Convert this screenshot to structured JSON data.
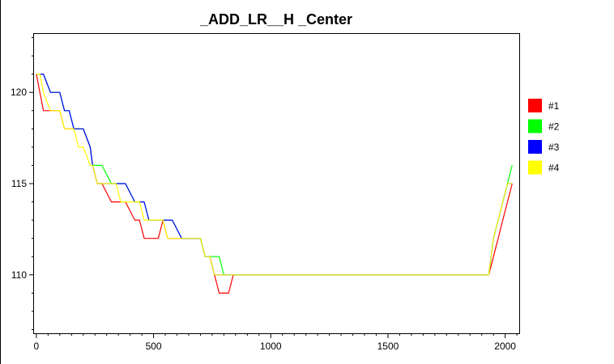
{
  "chart_data": {
    "type": "line",
    "title": "_ADD_LR__H _Center",
    "xlabel": "",
    "ylabel": "",
    "xlim": [
      -10,
      2060
    ],
    "ylim": [
      106.8,
      123.2
    ],
    "xticks": [
      0,
      500,
      1000,
      1500,
      2000
    ],
    "yticks": [
      110,
      115,
      120
    ],
    "x_minor_step": 50,
    "y_minor_step": 1,
    "grid": false,
    "legend_position": "right",
    "series": [
      {
        "name": "#1",
        "color": "#ff0000",
        "points": [
          [
            0,
            121
          ],
          [
            15,
            120
          ],
          [
            30,
            119
          ],
          [
            60,
            119
          ],
          [
            80,
            119
          ],
          [
            100,
            119
          ],
          [
            120,
            118
          ],
          [
            140,
            118
          ],
          [
            160,
            118
          ],
          [
            180,
            118
          ],
          [
            200,
            118
          ],
          [
            230,
            117
          ],
          [
            240,
            116
          ],
          [
            260,
            115
          ],
          [
            280,
            115
          ],
          [
            320,
            114
          ],
          [
            340,
            114
          ],
          [
            360,
            114
          ],
          [
            380,
            114
          ],
          [
            420,
            113
          ],
          [
            440,
            113
          ],
          [
            460,
            112
          ],
          [
            480,
            112
          ],
          [
            500,
            112
          ],
          [
            520,
            112
          ],
          [
            540,
            113
          ],
          [
            560,
            112
          ],
          [
            580,
            112
          ],
          [
            620,
            112
          ],
          [
            650,
            112
          ],
          [
            680,
            112
          ],
          [
            700,
            112
          ],
          [
            720,
            111
          ],
          [
            740,
            111
          ],
          [
            760,
            110
          ],
          [
            780,
            109
          ],
          [
            800,
            109
          ],
          [
            820,
            109
          ],
          [
            840,
            110
          ],
          [
            880,
            110
          ],
          [
            900,
            110
          ],
          [
            960,
            110
          ],
          [
            1000,
            110
          ],
          [
            1050,
            110
          ],
          [
            1100,
            110
          ],
          [
            1200,
            110
          ],
          [
            1300,
            110
          ],
          [
            1400,
            110
          ],
          [
            1500,
            110
          ],
          [
            1600,
            110
          ],
          [
            1700,
            110
          ],
          [
            1800,
            110
          ],
          [
            1900,
            110
          ],
          [
            1930,
            110
          ],
          [
            1950,
            111
          ],
          [
            1970,
            112
          ],
          [
            1990,
            113
          ],
          [
            2010,
            114
          ],
          [
            2030,
            115
          ]
        ]
      },
      {
        "name": "#2",
        "color": "#00ff00",
        "points": [
          [
            0,
            121
          ],
          [
            15,
            121
          ],
          [
            30,
            121
          ],
          [
            60,
            120
          ],
          [
            80,
            120
          ],
          [
            100,
            120
          ],
          [
            120,
            119
          ],
          [
            140,
            119
          ],
          [
            160,
            118
          ],
          [
            180,
            118
          ],
          [
            200,
            118
          ],
          [
            230,
            117
          ],
          [
            240,
            116
          ],
          [
            260,
            116
          ],
          [
            280,
            116
          ],
          [
            320,
            115
          ],
          [
            340,
            115
          ],
          [
            360,
            115
          ],
          [
            380,
            115
          ],
          [
            420,
            114
          ],
          [
            440,
            114
          ],
          [
            460,
            114
          ],
          [
            480,
            113
          ],
          [
            500,
            113
          ],
          [
            520,
            113
          ],
          [
            540,
            113
          ],
          [
            560,
            113
          ],
          [
            580,
            113
          ],
          [
            620,
            112
          ],
          [
            650,
            112
          ],
          [
            680,
            112
          ],
          [
            700,
            112
          ],
          [
            720,
            111
          ],
          [
            740,
            111
          ],
          [
            760,
            111
          ],
          [
            780,
            111
          ],
          [
            800,
            110
          ],
          [
            820,
            110
          ],
          [
            840,
            110
          ],
          [
            880,
            110
          ],
          [
            900,
            110
          ],
          [
            960,
            110
          ],
          [
            1000,
            110
          ],
          [
            1050,
            110
          ],
          [
            1100,
            110
          ],
          [
            1200,
            110
          ],
          [
            1300,
            110
          ],
          [
            1400,
            110
          ],
          [
            1500,
            110
          ],
          [
            1600,
            110
          ],
          [
            1700,
            110
          ],
          [
            1800,
            110
          ],
          [
            1900,
            110
          ],
          [
            1930,
            110
          ],
          [
            1950,
            112
          ],
          [
            1970,
            113
          ],
          [
            1990,
            114
          ],
          [
            2010,
            115
          ],
          [
            2030,
            116
          ]
        ]
      },
      {
        "name": "#3",
        "color": "#0000ff",
        "points": [
          [
            0,
            121
          ],
          [
            15,
            121
          ],
          [
            30,
            121
          ],
          [
            60,
            120
          ],
          [
            80,
            120
          ],
          [
            100,
            120
          ],
          [
            120,
            119
          ],
          [
            140,
            119
          ],
          [
            160,
            118
          ],
          [
            180,
            118
          ],
          [
            200,
            118
          ],
          [
            230,
            117
          ],
          [
            240,
            116
          ],
          [
            260,
            115
          ],
          [
            280,
            115
          ],
          [
            320,
            115
          ],
          [
            340,
            115
          ],
          [
            360,
            115
          ],
          [
            380,
            115
          ],
          [
            420,
            114
          ],
          [
            440,
            114
          ],
          [
            460,
            114
          ],
          [
            480,
            113
          ],
          [
            500,
            113
          ],
          [
            520,
            113
          ],
          [
            540,
            113
          ],
          [
            560,
            113
          ],
          [
            580,
            113
          ],
          [
            620,
            112
          ],
          [
            650,
            112
          ],
          [
            680,
            112
          ],
          [
            700,
            112
          ],
          [
            720,
            111
          ],
          [
            740,
            111
          ],
          [
            760,
            110
          ],
          [
            780,
            110
          ],
          [
            800,
            110
          ],
          [
            820,
            110
          ],
          [
            840,
            110
          ],
          [
            880,
            110
          ],
          [
            900,
            110
          ],
          [
            960,
            110
          ],
          [
            1000,
            110
          ],
          [
            1050,
            110
          ],
          [
            1100,
            110
          ],
          [
            1200,
            110
          ],
          [
            1300,
            110
          ],
          [
            1400,
            110
          ],
          [
            1500,
            110
          ],
          [
            1600,
            110
          ],
          [
            1700,
            110
          ],
          [
            1800,
            110
          ],
          [
            1900,
            110
          ],
          [
            1930,
            110
          ],
          [
            1950,
            112
          ],
          [
            1970,
            113
          ],
          [
            1990,
            114
          ],
          [
            2010,
            115
          ],
          [
            2030,
            115
          ]
        ]
      },
      {
        "name": "#4",
        "color": "#ffff00",
        "points": [
          [
            0,
            121
          ],
          [
            15,
            121
          ],
          [
            30,
            120
          ],
          [
            60,
            119
          ],
          [
            80,
            119
          ],
          [
            100,
            119
          ],
          [
            120,
            118
          ],
          [
            140,
            118
          ],
          [
            160,
            118
          ],
          [
            180,
            117
          ],
          [
            200,
            117
          ],
          [
            230,
            116
          ],
          [
            240,
            116
          ],
          [
            260,
            115
          ],
          [
            280,
            115
          ],
          [
            320,
            115
          ],
          [
            340,
            115
          ],
          [
            360,
            114
          ],
          [
            380,
            114
          ],
          [
            420,
            114
          ],
          [
            440,
            114
          ],
          [
            460,
            113
          ],
          [
            480,
            113
          ],
          [
            500,
            113
          ],
          [
            520,
            113
          ],
          [
            540,
            113
          ],
          [
            560,
            112
          ],
          [
            580,
            112
          ],
          [
            620,
            112
          ],
          [
            650,
            112
          ],
          [
            680,
            112
          ],
          [
            700,
            112
          ],
          [
            720,
            111
          ],
          [
            740,
            111
          ],
          [
            760,
            110
          ],
          [
            780,
            110
          ],
          [
            800,
            110
          ],
          [
            820,
            110
          ],
          [
            840,
            110
          ],
          [
            880,
            110
          ],
          [
            900,
            110
          ],
          [
            960,
            110
          ],
          [
            1000,
            110
          ],
          [
            1050,
            110
          ],
          [
            1100,
            110
          ],
          [
            1200,
            110
          ],
          [
            1300,
            110
          ],
          [
            1400,
            110
          ],
          [
            1500,
            110
          ],
          [
            1600,
            110
          ],
          [
            1700,
            110
          ],
          [
            1800,
            110
          ],
          [
            1900,
            110
          ],
          [
            1930,
            110
          ],
          [
            1950,
            112
          ],
          [
            1970,
            113
          ],
          [
            1990,
            114
          ],
          [
            2010,
            115
          ],
          [
            2030,
            115
          ]
        ]
      }
    ]
  }
}
